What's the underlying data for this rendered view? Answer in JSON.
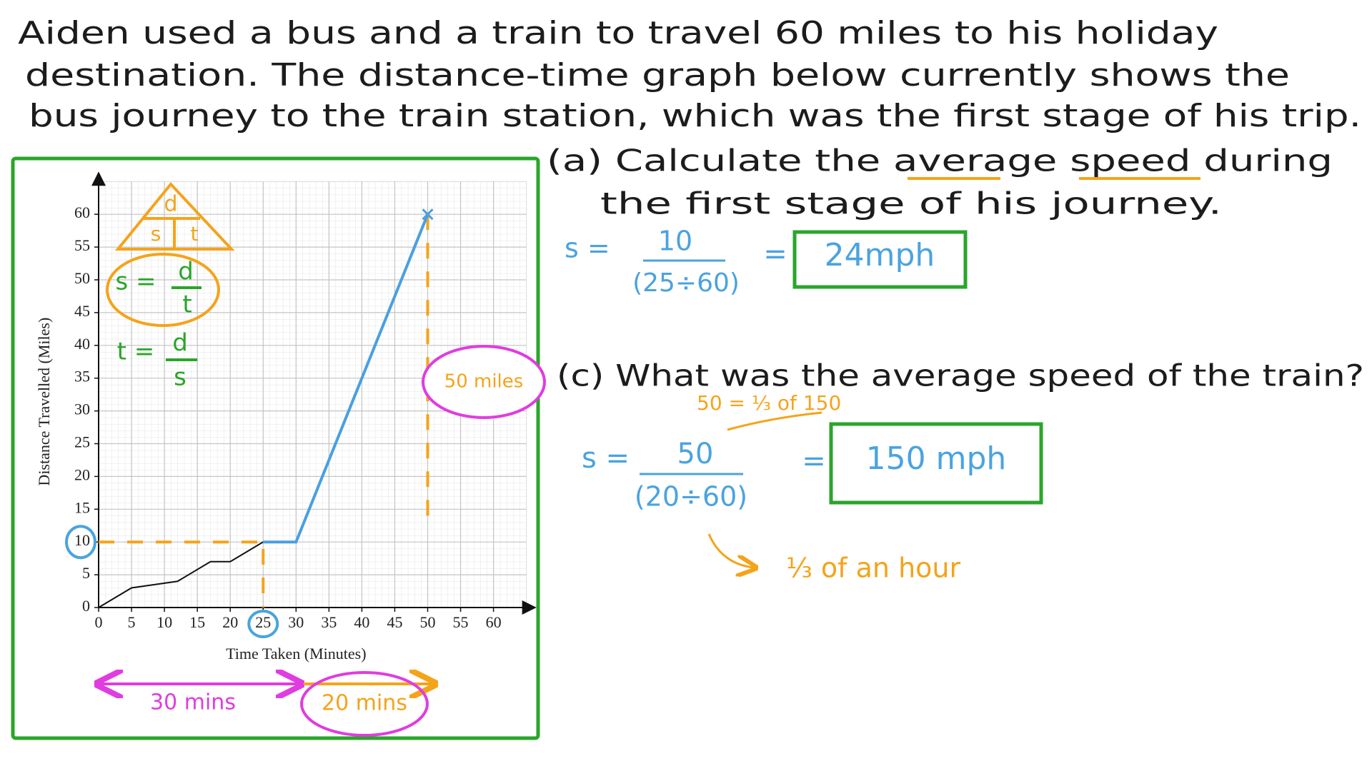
{
  "question": [
    "Aiden used a bus and a train to travel 60 miles to his holiday",
    "destination. The distance-time graph below currently shows the",
    "bus journey to the train station, which was the first stage of his trip."
  ],
  "part_a": {
    "question": [
      "(a) Calculate the average speed during",
      "the first stage of his journey."
    ],
    "formula_lhs": "s =",
    "numerator": "10",
    "denominator": "(25÷60)",
    "equals": "=",
    "answer": "24mph"
  },
  "part_c": {
    "question": "(c) What was the average speed of the train?",
    "note": "50 = ⅓ of 150",
    "formula_lhs": "s =",
    "numerator": "50",
    "denominator": "(20÷60)",
    "equals": "=",
    "answer": "150 mph",
    "note2": "⅓ of an hour"
  },
  "chart_data": {
    "type": "line",
    "xlabel": "Time Taken (Minutes)",
    "ylabel": "Distance Travelled (Miles)",
    "xlim": [
      0,
      65
    ],
    "ylim": [
      0,
      65
    ],
    "xticks": [
      0,
      5,
      10,
      15,
      20,
      25,
      30,
      35,
      40,
      45,
      50,
      55,
      60
    ],
    "yticks": [
      0,
      5,
      10,
      15,
      20,
      25,
      30,
      35,
      40,
      45,
      50,
      55,
      60
    ],
    "grid": true,
    "series": [
      {
        "color": "#111111",
        "x": [
          0,
          5,
          12,
          17,
          20,
          25
        ],
        "values": [
          0,
          3,
          4,
          7,
          7,
          10
        ]
      },
      {
        "color": "#4a9fe0",
        "x": [
          25,
          30,
          50
        ],
        "values": [
          10,
          10,
          60
        ]
      }
    ],
    "annotations": {
      "triangle_top": "d",
      "triangle_left": "s",
      "triangle_right": "t",
      "formula_s": {
        "lhs": "s =",
        "num": "d",
        "den": "t"
      },
      "formula_t": {
        "lhs": "t =",
        "num": "d",
        "den": "s"
      },
      "distance_label": "50 miles",
      "bus_time": "30 mins",
      "train_time": "20 mins"
    }
  }
}
